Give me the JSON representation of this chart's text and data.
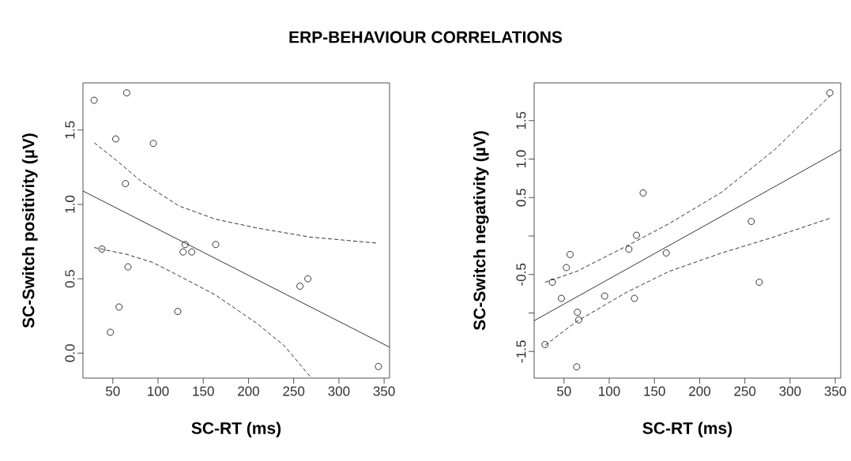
{
  "chart_data": [
    {
      "type": "scatter",
      "title": "ERP-BEHAVIOUR CORRELATIONS",
      "xlabel": "SC-RT (ms)",
      "ylabel": "SC-Switch positivity (µV)",
      "xlim": [
        17,
        356
      ],
      "ylim": [
        -0.168,
        1.817
      ],
      "xticks": [
        50,
        100,
        150,
        200,
        250,
        300,
        350
      ],
      "yticks": [
        {
          "value": 0.0,
          "label": "0.0"
        },
        {
          "value": 0.5,
          "label": "0.5"
        },
        {
          "value": 1.0,
          "label": "1.0"
        },
        {
          "value": 1.5,
          "label": "1.5"
        }
      ],
      "series": [
        {
          "marker": "circle",
          "color": "#000000",
          "x": [
            29.3,
            65.4,
            53.2,
            94.8,
            63.9,
            38.0,
            66.8,
            56.9,
            47.3,
            121.8,
            130.0,
            127.7,
            137.3,
            163.8,
            256.9,
            265.7,
            343.7
          ],
          "values": [
            1.7,
            1.75,
            1.44,
            1.41,
            1.14,
            0.7,
            0.58,
            0.31,
            0.14,
            0.28,
            0.73,
            0.68,
            0.68,
            0.73,
            0.45,
            0.5,
            -0.09
          ]
        },
        {
          "type": "line",
          "color": "#000000",
          "line_style": "solid",
          "x": [
            17,
            356
          ],
          "values": [
            1.09,
            0.04
          ]
        },
        {
          "type": "line",
          "color": "#000000",
          "line_style": "dashed",
          "x": [
            29.3,
            53.2,
            82.3,
            123.0,
            163.8,
            210.4,
            268.6,
            341.4
          ],
          "values": [
            1.415,
            1.3,
            1.15,
            0.99,
            0.9,
            0.84,
            0.78,
            0.74
          ]
        },
        {
          "type": "line",
          "color": "#000000",
          "line_style": "dashed",
          "x": [
            29.3,
            64.8,
            93.9,
            123.0,
            163.8,
            210.4,
            239.5,
            268.6
          ],
          "values": [
            0.71,
            0.665,
            0.61,
            0.52,
            0.39,
            0.195,
            0.05,
            -0.16
          ]
        }
      ]
    },
    {
      "type": "scatter",
      "xlabel": "SC-RT (ms)",
      "ylabel": "SC-Switch negativity (µV)",
      "xlim": [
        17,
        356
      ],
      "ylim": [
        -1.846,
        1.99
      ],
      "xticks": [
        50,
        100,
        150,
        200,
        250,
        300,
        350
      ],
      "yticks": [
        {
          "value": -1.5,
          "label": "-1.5"
        },
        {
          "value": -1.0,
          "label": null
        },
        {
          "value": -0.5,
          "label": "-0.5"
        },
        {
          "value": 0.0,
          "label": null
        },
        {
          "value": 0.5,
          "label": "0.5"
        },
        {
          "value": 1.0,
          "label": "1.0"
        },
        {
          "value": 1.5,
          "label": "1.5"
        }
      ],
      "series": [
        {
          "marker": "circle",
          "color": "#000000",
          "x": [
            344.0,
            137.5,
            257.1,
            130.2,
            121.7,
            163.1,
            56.7,
            52.6,
            37.1,
            265.9,
            47.1,
            94.9,
            127.9,
            64.8,
            66.3,
            29.0,
            64.0
          ],
          "values": [
            1.86,
            0.56,
            0.19,
            0.01,
            -0.17,
            -0.22,
            -0.24,
            -0.41,
            -0.6,
            -0.6,
            -0.81,
            -0.78,
            -0.81,
            -0.99,
            -1.09,
            -1.41,
            -1.7
          ]
        },
        {
          "type": "line",
          "color": "#000000",
          "line_style": "solid",
          "x": [
            17,
            356
          ],
          "values": [
            -1.1,
            1.12
          ]
        },
        {
          "type": "line",
          "color": "#000000",
          "line_style": "dashed",
          "x": [
            29.0,
            64.0,
            119.4,
            166.1,
            224.4,
            282.8,
            344.0
          ],
          "values": [
            -0.6,
            -0.46,
            -0.13,
            0.16,
            0.57,
            1.12,
            1.82
          ]
        },
        {
          "type": "line",
          "color": "#000000",
          "line_style": "dashed",
          "x": [
            29.0,
            64.0,
            119.4,
            166.1,
            224.4,
            282.8,
            344.0
          ],
          "values": [
            -1.42,
            -1.11,
            -0.73,
            -0.46,
            -0.22,
            -0.01,
            0.23
          ]
        }
      ]
    }
  ]
}
